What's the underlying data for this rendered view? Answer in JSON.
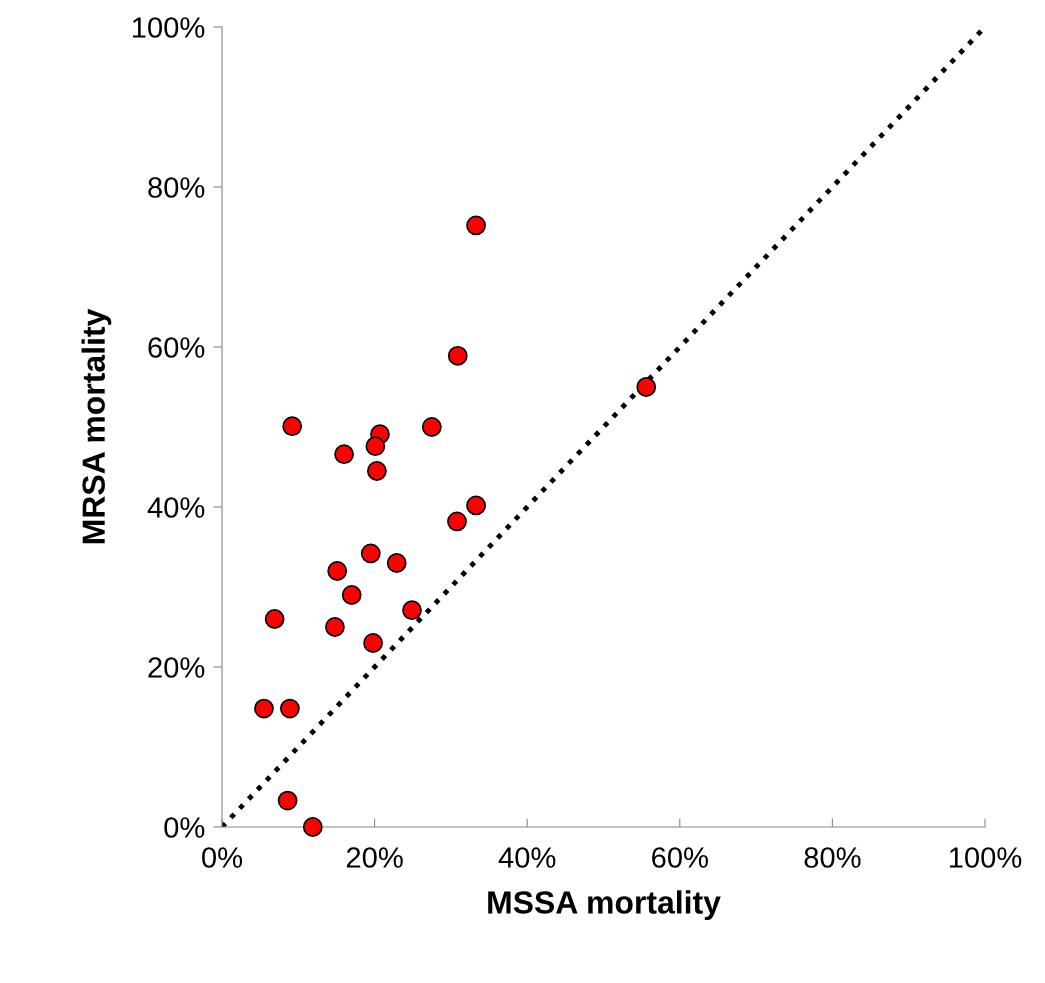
{
  "chart_data": {
    "type": "scatter",
    "xlabel": "MSSA mortality",
    "ylabel": "MRSA mortality",
    "xlim": [
      0,
      100
    ],
    "ylim": [
      0,
      100
    ],
    "xticks": [
      {
        "value": 0,
        "label": "0%"
      },
      {
        "value": 20,
        "label": "20%"
      },
      {
        "value": 40,
        "label": "40%"
      },
      {
        "value": 60,
        "label": "60%"
      },
      {
        "value": 80,
        "label": "80%"
      },
      {
        "value": 100,
        "label": "100%"
      }
    ],
    "yticks": [
      {
        "value": 0,
        "label": "0%"
      },
      {
        "value": 20,
        "label": "20%"
      },
      {
        "value": 40,
        "label": "40%"
      },
      {
        "value": 60,
        "label": "60%"
      },
      {
        "value": 80,
        "label": "80%"
      },
      {
        "value": 100,
        "label": "100%"
      }
    ],
    "grid": false,
    "legend": false,
    "series": [
      {
        "color": "#ff0000",
        "marker": "circle",
        "x": [
          33.3,
          30.9,
          55.6,
          9.2,
          27.5,
          20.7,
          20.1,
          16.0,
          20.3,
          33.3,
          30.8,
          19.5,
          22.9,
          15.1,
          17.0,
          6.9,
          24.9,
          14.8,
          19.8,
          5.5,
          8.9,
          8.6,
          11.9
        ],
        "values": [
          75.2,
          58.9,
          55.0,
          50.1,
          50.0,
          49.1,
          47.6,
          46.6,
          44.5,
          40.2,
          38.2,
          34.2,
          33.0,
          32.0,
          29.0,
          26.0,
          27.1,
          25.0,
          23.0,
          14.8,
          14.8,
          3.3,
          0
        ]
      },
      {
        "type": "line",
        "color": "#000000",
        "marker": "none",
        "line_style": "dotted",
        "x": [
          0,
          100
        ],
        "values": [
          0,
          100
        ]
      }
    ]
  }
}
